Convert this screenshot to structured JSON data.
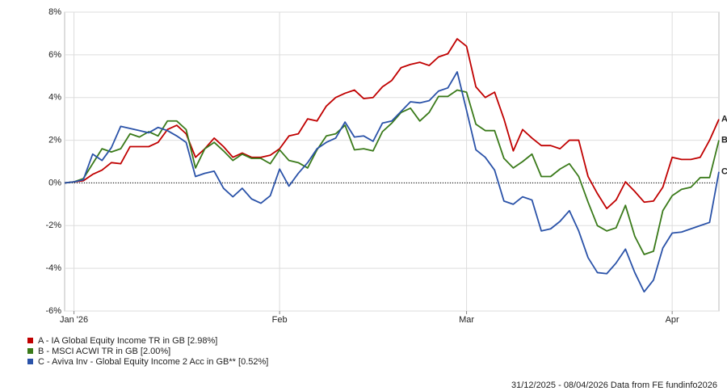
{
  "chart_data": {
    "type": "line",
    "x": [
      0,
      1,
      2,
      3,
      4,
      5,
      6,
      7,
      8,
      9,
      10,
      11,
      12,
      13,
      14,
      15,
      16,
      17,
      18,
      19,
      20,
      21,
      22,
      23,
      24,
      25,
      26,
      27,
      28,
      29,
      30,
      31,
      32,
      33,
      34,
      35,
      36,
      37,
      38,
      39,
      40,
      41,
      42,
      43,
      44,
      45,
      46,
      47,
      48,
      49,
      50,
      51,
      52,
      53,
      54,
      55,
      56,
      57,
      58,
      59,
      60,
      61,
      62,
      63,
      64,
      65,
      66,
      67,
      68,
      69,
      70
    ],
    "xlim": [
      0,
      70
    ],
    "xticks": [
      {
        "value": 1,
        "label": "Jan '26"
      },
      {
        "value": 23,
        "label": "Feb"
      },
      {
        "value": 43,
        "label": "Mar"
      },
      {
        "value": 65,
        "label": "Apr"
      }
    ],
    "ylim": [
      -6,
      8
    ],
    "yticks": [
      {
        "value": -6,
        "label": "-6%"
      },
      {
        "value": -4,
        "label": "-4%"
      },
      {
        "value": -2,
        "label": "-2%"
      },
      {
        "value": 0,
        "label": "0%"
      },
      {
        "value": 2,
        "label": "2%"
      },
      {
        "value": 4,
        "label": "4%"
      },
      {
        "value": 6,
        "label": "6%"
      },
      {
        "value": 8,
        "label": "8%"
      }
    ],
    "grid": true,
    "zero_line": true,
    "series": [
      {
        "name": "A - IA Global Equity Income TR in GB [2.98%]",
        "label": "A",
        "color": "#c00000",
        "values": [
          0,
          0.05,
          0.1,
          0.4,
          0.6,
          0.95,
          0.9,
          1.7,
          1.7,
          1.7,
          1.9,
          2.5,
          2.7,
          2.3,
          1.2,
          1.6,
          2.1,
          1.7,
          1.2,
          1.4,
          1.2,
          1.2,
          1.3,
          1.6,
          2.2,
          2.3,
          3.0,
          2.9,
          3.6,
          4.0,
          4.2,
          4.35,
          3.95,
          4.0,
          4.5,
          4.8,
          5.4,
          5.55,
          5.65,
          5.5,
          5.9,
          6.05,
          6.75,
          6.4,
          4.5,
          4.0,
          4.25,
          3.0,
          1.5,
          2.5,
          2.1,
          1.75,
          1.75,
          1.6,
          2.0,
          2.0,
          0.3,
          -0.5,
          -1.2,
          -0.8,
          0.05,
          -0.4,
          -0.9,
          -0.85,
          -0.2,
          1.2,
          1.1,
          1.1,
          1.2,
          2.0,
          2.98
        ]
      },
      {
        "name": "B - MSCI ACWI TR in GB [2.00%]",
        "label": "B",
        "color": "#3a7a1a",
        "values": [
          0,
          0.05,
          0.2,
          0.9,
          1.6,
          1.45,
          1.6,
          2.3,
          2.15,
          2.4,
          2.2,
          2.9,
          2.9,
          2.5,
          0.7,
          1.6,
          1.9,
          1.5,
          1.05,
          1.35,
          1.15,
          1.15,
          0.9,
          1.55,
          1.05,
          0.95,
          0.7,
          1.55,
          2.2,
          2.3,
          2.7,
          1.55,
          1.6,
          1.5,
          2.4,
          2.8,
          3.3,
          3.5,
          2.9,
          3.3,
          4.05,
          4.05,
          4.35,
          4.25,
          2.75,
          2.45,
          2.45,
          1.15,
          0.7,
          1.0,
          1.35,
          0.3,
          0.3,
          0.65,
          0.9,
          0.3,
          -0.9,
          -2.0,
          -2.25,
          -2.1,
          -1.05,
          -2.5,
          -3.35,
          -3.2,
          -1.3,
          -0.6,
          -0.3,
          -0.2,
          0.25,
          0.25,
          2.0
        ]
      },
      {
        "name": "C - Aviva Inv - Global Equity Income 2 Acc in GB** [0.52%]",
        "label": "C",
        "color": "#2a52a8",
        "values": [
          0,
          0.05,
          0.15,
          1.35,
          1.05,
          1.65,
          2.65,
          2.55,
          2.45,
          2.35,
          2.6,
          2.45,
          2.2,
          1.9,
          0.3,
          0.45,
          0.55,
          -0.25,
          -0.65,
          -0.25,
          -0.75,
          -0.95,
          -0.6,
          0.65,
          -0.15,
          0.45,
          0.95,
          1.6,
          1.9,
          2.1,
          2.85,
          2.15,
          2.2,
          1.95,
          2.8,
          2.9,
          3.35,
          3.8,
          3.75,
          3.85,
          4.3,
          4.45,
          5.2,
          3.4,
          1.55,
          1.2,
          0.6,
          -0.85,
          -1.0,
          -0.65,
          -0.8,
          -2.25,
          -2.15,
          -1.8,
          -1.3,
          -2.25,
          -3.5,
          -4.2,
          -4.25,
          -3.75,
          -3.1,
          -4.2,
          -5.1,
          -4.55,
          -3.05,
          -2.35,
          -2.3,
          -2.15,
          -2.0,
          -1.85,
          0.52
        ]
      }
    ],
    "footer": "31/12/2025 - 08/04/2026 Data from FE fundinfo2026"
  }
}
